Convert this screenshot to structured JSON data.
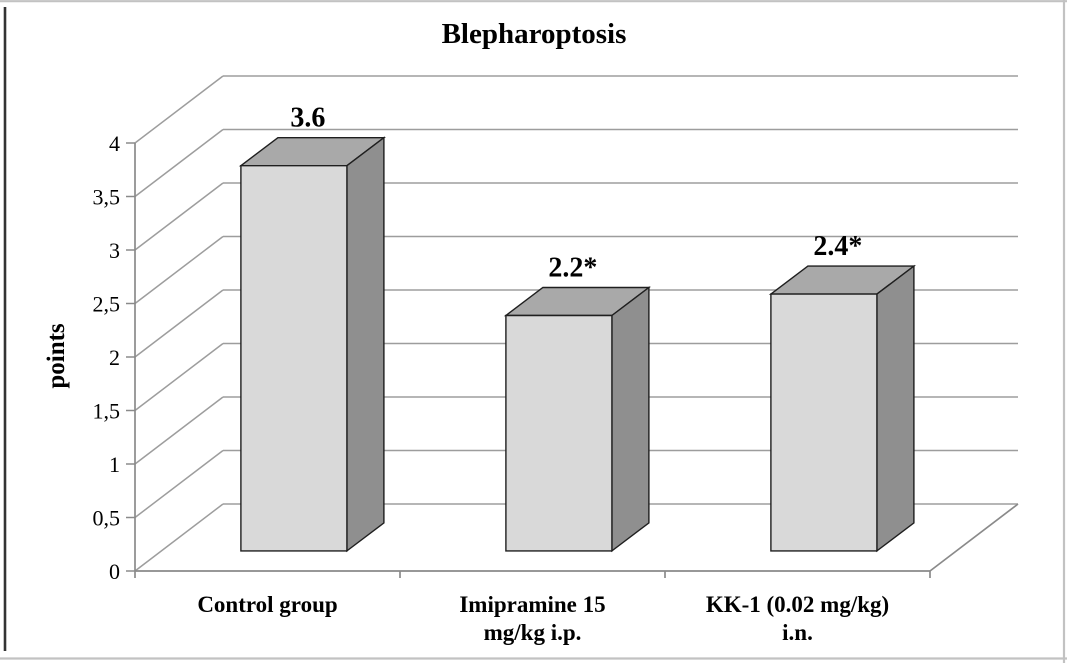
{
  "figure": {
    "background": "#ffffff",
    "frame_outer_color": "#c2c2c2",
    "frame_left_color": "#333333"
  },
  "chart_data": {
    "type": "bar",
    "projection": "3d-column",
    "title": "Blepharoptosis",
    "ylabel": "points",
    "xlabel": "",
    "ylim": [
      0,
      4
    ],
    "ytick_step": 0.5,
    "grid": true,
    "legend": false,
    "categories": [
      "Control group",
      "Imipramine 15 mg/kg i.p.",
      "KK-1 (0.02 mg/kg) i.n."
    ],
    "category_lines": [
      [
        "Control group"
      ],
      [
        "Imipramine 15",
        "mg/kg i.p."
      ],
      [
        "KK-1 (0.02 mg/kg)",
        "i.n."
      ]
    ],
    "values": [
      3.6,
      2.2,
      2.4
    ],
    "bar_labels": [
      "3.6",
      "2.2*",
      "2.4*"
    ],
    "ytick_labels": [
      "0",
      "0,5",
      "1",
      "1,5",
      "2",
      "2,5",
      "3",
      "3,5",
      "4"
    ],
    "colors": {
      "bar_front": "#d9d9d9",
      "bar_top": "#a9a9a9",
      "bar_side": "#8f8f8f",
      "bar_outline": "#1f1f1f",
      "gridline": "#9d9d9d",
      "axis": "#8a8a8a",
      "text": "#000000"
    }
  }
}
